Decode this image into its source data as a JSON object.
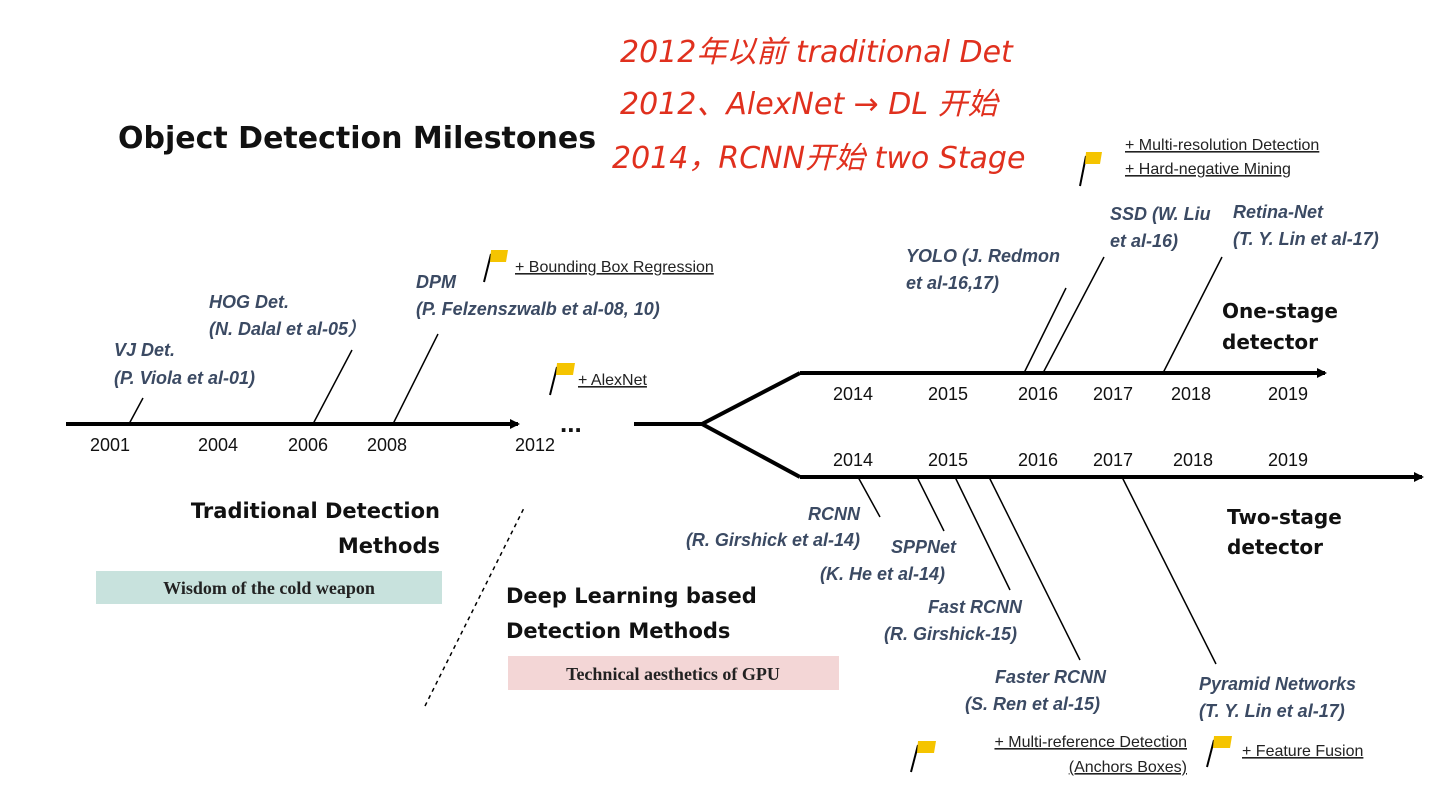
{
  "title": "Object Detection Milestones",
  "handwritten_notes": [
    "2012年以前 traditional Det",
    "2012、AlexNet → DL 开始",
    "2014，RCNN开始 two Stage"
  ],
  "colors": {
    "line": "#000000",
    "method_text": "#3b4a63",
    "flag": "#f5c400",
    "banner_traditional": "#c8e2dd",
    "banner_deep": "#f3d6d6",
    "handwriting": "#e0301e"
  },
  "traditional_timeline": {
    "years": [
      "2001",
      "2004",
      "2006",
      "2008",
      "2012"
    ],
    "ellipsis": "...",
    "methods": [
      {
        "name": "VJ Det.",
        "ref": "(P. Viola et al-01)"
      },
      {
        "name": "HOG Det.",
        "ref": "(N. Dalal et al-05）"
      },
      {
        "name": "DPM",
        "ref": "(P. Felzenszwalb et al-08, 10)"
      }
    ],
    "notes": {
      "dpm": "+ Bounding Box Regression",
      "alexnet": "+ AlexNet",
      "multi_res": "+ Multi-resolution Detection",
      "hard_neg": "+ Hard-negative Mining"
    },
    "section_label_line1": "Traditional Detection",
    "section_label_line2": "Methods",
    "banner": "Wisdom of the cold weapon"
  },
  "deep_learning": {
    "section_label_line1": "Deep Learning based",
    "section_label_line2": "Detection Methods",
    "banner": "Technical aesthetics of GPU"
  },
  "one_stage": {
    "label_line1": "One-stage",
    "label_line2": "detector",
    "years": [
      "2014",
      "2015",
      "2016",
      "2017",
      "2018",
      "2019"
    ],
    "methods": [
      {
        "name": "YOLO (J. Redmon",
        "ref": "et al-16,17)"
      },
      {
        "name": "SSD (W. Liu",
        "ref": "et al-16)"
      },
      {
        "name": "Retina-Net",
        "ref": "(T. Y. Lin et al-17)"
      }
    ]
  },
  "two_stage": {
    "label_line1": "Two-stage",
    "label_line2": "detector",
    "years": [
      "2014",
      "2015",
      "2016",
      "2017",
      "2018",
      "2019"
    ],
    "methods": [
      {
        "name": "RCNN",
        "ref": "(R. Girshick et al-14)"
      },
      {
        "name": "SPPNet",
        "ref": "(K. He et al-14)"
      },
      {
        "name": "Fast RCNN",
        "ref": "(R. Girshick-15)"
      },
      {
        "name": "Faster RCNN",
        "ref": "(S. Ren et al-15)"
      },
      {
        "name": "Pyramid Networks",
        "ref": "(T. Y. Lin et al-17)"
      }
    ],
    "notes": {
      "multi_ref": "+ Multi-reference Detection",
      "anchors": "(Anchors Boxes)",
      "fusion": "+ Feature Fusion"
    }
  }
}
